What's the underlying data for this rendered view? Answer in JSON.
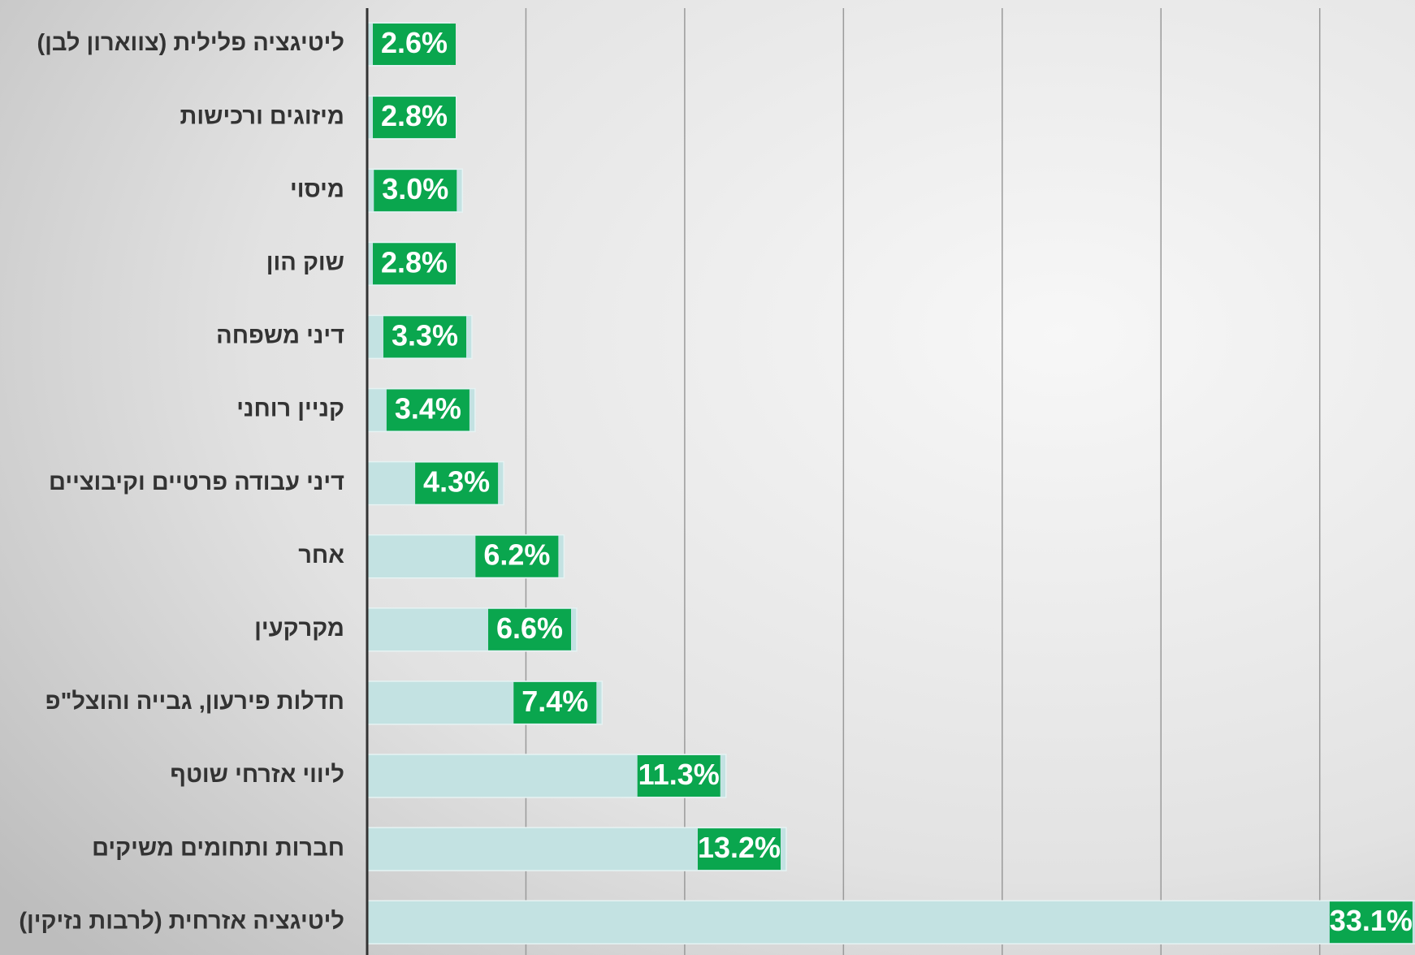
{
  "chart_data": {
    "type": "hbar",
    "categories": [
      "ליטיגציה פלילית (צווארון לבן)",
      "מיזוגים ורכישות",
      "מיסוי",
      "שוק הון",
      "דיני משפחה",
      "קניין רוחני",
      "דיני עבודה פרטיים וקיבוציים",
      "אחר",
      "מקרקעין",
      "חדלות פירעון, גבייה והוצל\"פ",
      "ליווי אזרחי שוטף",
      "חברות ותחומים משיקים",
      "ליטיגציה אזרחית (לרבות נזיקין)"
    ],
    "values": [
      2.6,
      2.8,
      3.0,
      2.8,
      3.3,
      3.4,
      4.3,
      6.2,
      6.6,
      7.4,
      11.3,
      13.2,
      33.1
    ],
    "value_labels": [
      "2.6%",
      "2.8%",
      "3.0%",
      "2.8%",
      "3.3%",
      "3.4%",
      "4.3%",
      "6.2%",
      "6.6%",
      "7.4%",
      "11.3%",
      "13.2%",
      "33.1%"
    ],
    "color": "#c3e2e2",
    "label_color": "#0aa64e",
    "xlim": [
      0,
      33
    ],
    "xticks": [
      0,
      5,
      10,
      15,
      20,
      25,
      30
    ],
    "grid": true
  }
}
